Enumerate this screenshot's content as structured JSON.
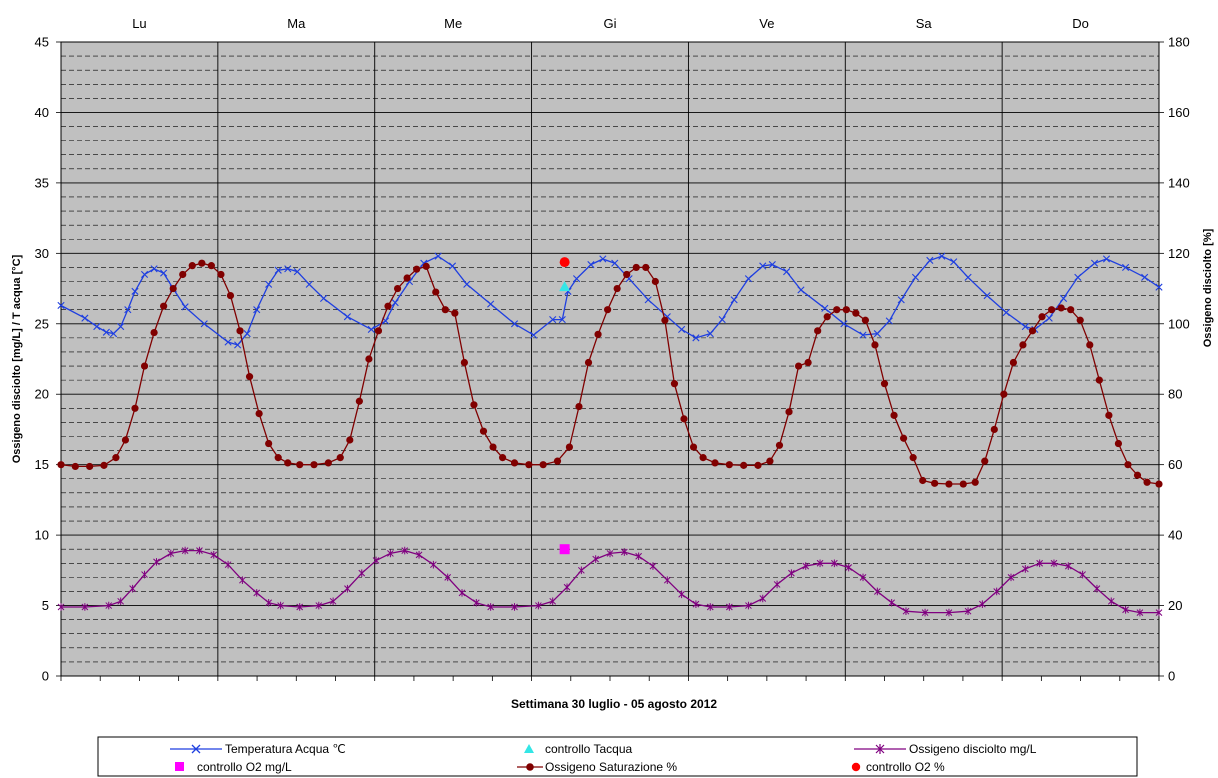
{
  "chart_data": {
    "type": "line",
    "xlabel": "Settimana  30 luglio - 05 agosto 2012",
    "ylabel_left": "Ossigeno disciolto [mg/L] / T acqua [°C]",
    "ylabel_right": "Ossigeno disciolto [%]",
    "ylim_left": [
      0,
      45
    ],
    "ylim_right": [
      0,
      180
    ],
    "yticks_left": [
      "0",
      "5",
      "10",
      "15",
      "20",
      "25",
      "30",
      "35",
      "40",
      "45"
    ],
    "yticks_right": [
      "0",
      "20",
      "40",
      "60",
      "80",
      "100",
      "120",
      "140",
      "160",
      "180"
    ],
    "days": [
      "Lu",
      "Ma",
      "Me",
      "Gi",
      "Ve",
      "Sa",
      "Do"
    ],
    "grid": true,
    "legend_position": "bottom",
    "colors": {
      "plot_bg": "#c0c0c0",
      "temperature": "#1f3fe0",
      "oxygen_sat": "#800000",
      "oxygen_mgl": "#800080",
      "ctrl_t": "#33e6e6",
      "ctrl_o2mgl": "#ff00ff",
      "ctrl_o2pct": "#ff0000"
    },
    "series": [
      {
        "name": "Temperatura Acqua °C",
        "axis": "left",
        "marker": "x",
        "points": [
          [
            0,
            26.3
          ],
          [
            0.5,
            25.4
          ],
          [
            0.75,
            24.8
          ],
          [
            0.95,
            24.4
          ],
          [
            1.1,
            24.3
          ],
          [
            1.25,
            24.8
          ],
          [
            1.4,
            26
          ],
          [
            1.55,
            27.3
          ],
          [
            1.75,
            28.5
          ],
          [
            1.95,
            28.9
          ],
          [
            2.15,
            28.6
          ],
          [
            2.35,
            27.5
          ],
          [
            2.6,
            26.2
          ],
          [
            3,
            25
          ],
          [
            3.5,
            23.7
          ],
          [
            3.7,
            23.5
          ],
          [
            3.9,
            24.3
          ],
          [
            4.1,
            26
          ],
          [
            4.35,
            27.8
          ],
          [
            4.55,
            28.8
          ],
          [
            4.75,
            28.9
          ],
          [
            4.95,
            28.7
          ],
          [
            5.2,
            27.8
          ],
          [
            5.5,
            26.8
          ],
          [
            6,
            25.5
          ],
          [
            6.5,
            24.6
          ],
          [
            6.8,
            25.2
          ],
          [
            7.0,
            26.5
          ],
          [
            7.3,
            28
          ],
          [
            7.6,
            29.3
          ],
          [
            7.9,
            29.8
          ],
          [
            8.2,
            29.1
          ],
          [
            8.5,
            27.8
          ],
          [
            9,
            26.4
          ],
          [
            9.5,
            25
          ],
          [
            9.9,
            24.2
          ],
          [
            10.3,
            25.3
          ],
          [
            10.5,
            25.3
          ],
          [
            10.62,
            27.3
          ],
          [
            10.8,
            28.2
          ],
          [
            11.1,
            29.2
          ],
          [
            11.35,
            29.6
          ],
          [
            11.6,
            29.3
          ],
          [
            11.9,
            28.2
          ],
          [
            12.3,
            26.7
          ],
          [
            12.7,
            25.5
          ],
          [
            13.0,
            24.6
          ],
          [
            13.3,
            24
          ],
          [
            13.6,
            24.3
          ],
          [
            13.85,
            25.3
          ],
          [
            14.1,
            26.7
          ],
          [
            14.4,
            28.2
          ],
          [
            14.7,
            29.1
          ],
          [
            14.9,
            29.2
          ],
          [
            15.2,
            28.7
          ],
          [
            15.5,
            27.4
          ],
          [
            16,
            26.1
          ],
          [
            16.4,
            25
          ],
          [
            16.8,
            24.2
          ],
          [
            17.1,
            24.3
          ],
          [
            17.35,
            25.2
          ],
          [
            17.6,
            26.7
          ],
          [
            17.9,
            28.3
          ],
          [
            18.2,
            29.5
          ],
          [
            18.45,
            29.8
          ],
          [
            18.7,
            29.4
          ],
          [
            19,
            28.3
          ],
          [
            19.4,
            27
          ],
          [
            19.8,
            25.8
          ],
          [
            20.2,
            24.8
          ],
          [
            20.4,
            24.6
          ],
          [
            20.7,
            25.4
          ],
          [
            21,
            26.8
          ],
          [
            21.3,
            28.3
          ],
          [
            21.65,
            29.3
          ],
          [
            21.9,
            29.6
          ],
          [
            22.3,
            29
          ],
          [
            22.7,
            28.3
          ],
          [
            23,
            27.6
          ]
        ]
      },
      {
        "name": "Ossigeno Saturazione %",
        "axis": "right",
        "marker": "circle",
        "points": [
          [
            0,
            60
          ],
          [
            0.3,
            59.5
          ],
          [
            0.6,
            59.5
          ],
          [
            0.9,
            59.8
          ],
          [
            1.15,
            62
          ],
          [
            1.35,
            67
          ],
          [
            1.55,
            76
          ],
          [
            1.75,
            88
          ],
          [
            1.95,
            97.5
          ],
          [
            2.15,
            105
          ],
          [
            2.35,
            110
          ],
          [
            2.55,
            114
          ],
          [
            2.75,
            116.5
          ],
          [
            2.95,
            117.2
          ],
          [
            3.15,
            116.5
          ],
          [
            3.35,
            114
          ],
          [
            3.55,
            108
          ],
          [
            3.75,
            98
          ],
          [
            3.95,
            85
          ],
          [
            4.15,
            74.5
          ],
          [
            4.35,
            66
          ],
          [
            4.55,
            62
          ],
          [
            4.75,
            60.5
          ],
          [
            5,
            60
          ],
          [
            5.3,
            60
          ],
          [
            5.6,
            60.5
          ],
          [
            5.85,
            62
          ],
          [
            6.05,
            67
          ],
          [
            6.25,
            78
          ],
          [
            6.45,
            90
          ],
          [
            6.65,
            98
          ],
          [
            6.85,
            105
          ],
          [
            7.05,
            110
          ],
          [
            7.25,
            113
          ],
          [
            7.45,
            115.5
          ],
          [
            7.65,
            116.3
          ],
          [
            7.85,
            109
          ],
          [
            8.05,
            104
          ],
          [
            8.25,
            103
          ],
          [
            8.45,
            89
          ],
          [
            8.65,
            77
          ],
          [
            8.85,
            69.5
          ],
          [
            9.05,
            65
          ],
          [
            9.25,
            62
          ],
          [
            9.5,
            60.5
          ],
          [
            9.8,
            60
          ],
          [
            10.1,
            60
          ],
          [
            10.4,
            61
          ],
          [
            10.65,
            65
          ],
          [
            10.85,
            76.5
          ],
          [
            11.05,
            89
          ],
          [
            11.25,
            97
          ],
          [
            11.45,
            104
          ],
          [
            11.65,
            110
          ],
          [
            11.85,
            114
          ],
          [
            12.05,
            116
          ],
          [
            12.25,
            116
          ],
          [
            12.45,
            112
          ],
          [
            12.65,
            101
          ],
          [
            12.85,
            83
          ],
          [
            13.05,
            73
          ],
          [
            13.25,
            65
          ],
          [
            13.45,
            62
          ],
          [
            13.7,
            60.5
          ],
          [
            14,
            60
          ],
          [
            14.3,
            59.8
          ],
          [
            14.6,
            59.8
          ],
          [
            14.85,
            61
          ],
          [
            15.05,
            65.5
          ],
          [
            15.25,
            75
          ],
          [
            15.45,
            88
          ],
          [
            15.65,
            89
          ],
          [
            15.85,
            98
          ],
          [
            16.05,
            102
          ],
          [
            16.25,
            104
          ],
          [
            16.45,
            104
          ],
          [
            16.65,
            103
          ],
          [
            16.85,
            101
          ],
          [
            17.05,
            94
          ],
          [
            17.25,
            83
          ],
          [
            17.45,
            74
          ],
          [
            17.65,
            67.5
          ],
          [
            17.85,
            62
          ],
          [
            18.05,
            55.5
          ],
          [
            18.3,
            54.7
          ],
          [
            18.6,
            54.5
          ],
          [
            18.9,
            54.5
          ],
          [
            19.15,
            55
          ],
          [
            19.35,
            61
          ],
          [
            19.55,
            70
          ],
          [
            19.75,
            80
          ],
          [
            19.95,
            89
          ],
          [
            20.15,
            94
          ],
          [
            20.35,
            98
          ],
          [
            20.55,
            102
          ],
          [
            20.75,
            104
          ],
          [
            20.95,
            104.5
          ],
          [
            21.15,
            104
          ],
          [
            21.35,
            101
          ],
          [
            21.55,
            94
          ],
          [
            21.75,
            84
          ],
          [
            21.95,
            74
          ],
          [
            22.15,
            66
          ],
          [
            22.35,
            60
          ],
          [
            22.55,
            57
          ],
          [
            22.75,
            55
          ],
          [
            23,
            54.5
          ]
        ]
      },
      {
        "name": "Ossigeno disciolto mg/L",
        "axis": "left",
        "marker": "star",
        "points": [
          [
            0,
            4.9
          ],
          [
            0.5,
            4.9
          ],
          [
            1,
            5.0
          ],
          [
            1.25,
            5.3
          ],
          [
            1.5,
            6.2
          ],
          [
            1.75,
            7.2
          ],
          [
            2,
            8.1
          ],
          [
            2.3,
            8.7
          ],
          [
            2.6,
            8.9
          ],
          [
            2.9,
            8.9
          ],
          [
            3.2,
            8.6
          ],
          [
            3.5,
            7.9
          ],
          [
            3.8,
            6.8
          ],
          [
            4.1,
            5.9
          ],
          [
            4.35,
            5.2
          ],
          [
            4.6,
            5.0
          ],
          [
            5,
            4.9
          ],
          [
            5.4,
            5.0
          ],
          [
            5.7,
            5.3
          ],
          [
            6,
            6.2
          ],
          [
            6.3,
            7.3
          ],
          [
            6.6,
            8.2
          ],
          [
            6.9,
            8.7
          ],
          [
            7.2,
            8.9
          ],
          [
            7.5,
            8.6
          ],
          [
            7.8,
            7.9
          ],
          [
            8.1,
            7.0
          ],
          [
            8.4,
            5.9
          ],
          [
            8.7,
            5.2
          ],
          [
            9,
            4.9
          ],
          [
            9.5,
            4.9
          ],
          [
            10,
            5.0
          ],
          [
            10.3,
            5.3
          ],
          [
            10.6,
            6.3
          ],
          [
            10.9,
            7.5
          ],
          [
            11.2,
            8.3
          ],
          [
            11.5,
            8.7
          ],
          [
            11.8,
            8.8
          ],
          [
            12.1,
            8.5
          ],
          [
            12.4,
            7.8
          ],
          [
            12.7,
            6.8
          ],
          [
            13,
            5.8
          ],
          [
            13.3,
            5.1
          ],
          [
            13.6,
            4.9
          ],
          [
            14,
            4.9
          ],
          [
            14.4,
            5.0
          ],
          [
            14.7,
            5.5
          ],
          [
            15.0,
            6.5
          ],
          [
            15.3,
            7.3
          ],
          [
            15.6,
            7.8
          ],
          [
            15.9,
            8.0
          ],
          [
            16.2,
            8.0
          ],
          [
            16.5,
            7.7
          ],
          [
            16.8,
            7.0
          ],
          [
            17.1,
            6.0
          ],
          [
            17.4,
            5.2
          ],
          [
            17.7,
            4.6
          ],
          [
            18.1,
            4.5
          ],
          [
            18.6,
            4.5
          ],
          [
            19,
            4.6
          ],
          [
            19.3,
            5.1
          ],
          [
            19.6,
            6.0
          ],
          [
            19.9,
            7.0
          ],
          [
            20.2,
            7.6
          ],
          [
            20.5,
            8.0
          ],
          [
            20.8,
            8.0
          ],
          [
            21.1,
            7.8
          ],
          [
            21.4,
            7.2
          ],
          [
            21.7,
            6.2
          ],
          [
            22,
            5.3
          ],
          [
            22.3,
            4.7
          ],
          [
            22.6,
            4.5
          ],
          [
            23,
            4.5
          ]
        ]
      }
    ],
    "controls": [
      {
        "name": "controllo Tacqua",
        "axis": "left",
        "x": 10.55,
        "y": 27.6,
        "marker": "triangle"
      },
      {
        "name": "controllo O2 mg/L",
        "axis": "left",
        "x": 10.55,
        "y": 9.0,
        "marker": "square"
      },
      {
        "name": "controllo O2 %",
        "axis": "right",
        "x": 10.55,
        "y": 117.5,
        "marker": "dot"
      }
    ]
  },
  "legend": {
    "items": [
      "Temperatura Acqua ℃",
      "controllo Tacqua",
      "Ossigeno disciolto mg/L",
      "controllo O2 mg/L",
      "Ossigeno Saturazione %",
      "controllo O2 %"
    ]
  }
}
